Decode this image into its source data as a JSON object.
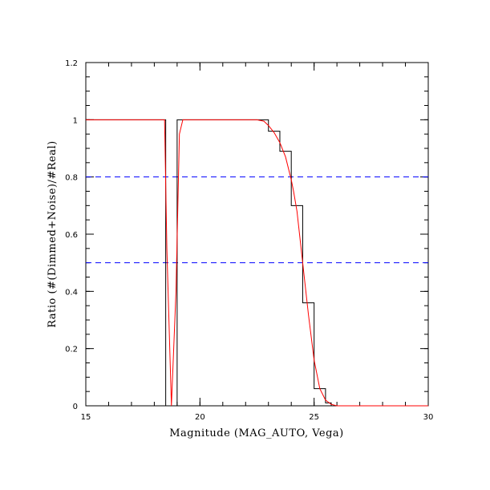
{
  "chart_data": {
    "type": "line",
    "title": "",
    "xlabel": "Magnitude (MAG_AUTO, Vega)",
    "ylabel": "Ratio (#(Dimmed+Noise)/#Real)",
    "xlim": [
      15,
      30
    ],
    "ylim": [
      0,
      1.2
    ],
    "x_ticks": [
      15,
      20,
      25,
      30
    ],
    "x_tick_labels": [
      "15",
      "20",
      "25",
      "30"
    ],
    "y_ticks": [
      0,
      0.2,
      0.4,
      0.6,
      0.8,
      1,
      1.2
    ],
    "y_tick_labels": [
      "0",
      "0.2",
      "0.4",
      "0.6",
      "0.8",
      "1",
      "1.2"
    ],
    "grid": false,
    "legend": "none",
    "series": [
      {
        "kind": "step-histogram",
        "color": "#000000",
        "points": [
          [
            15,
            1
          ],
          [
            18.5,
            1
          ],
          [
            18.5,
            0
          ],
          [
            18.75,
            0
          ],
          [
            18.75,
            0
          ],
          [
            19.0,
            0
          ],
          [
            19.0,
            1
          ],
          [
            23.0,
            1
          ],
          [
            23.0,
            0.96
          ],
          [
            23.5,
            0.96
          ],
          [
            23.5,
            0.89
          ],
          [
            24.0,
            0.89
          ],
          [
            24.0,
            0.7
          ],
          [
            24.5,
            0.7
          ],
          [
            24.5,
            0.36
          ],
          [
            25.0,
            0.36
          ],
          [
            25.0,
            0.06
          ],
          [
            25.5,
            0.06
          ],
          [
            25.5,
            0.01
          ],
          [
            25.75,
            0.01
          ],
          [
            25.75,
            0
          ],
          [
            30,
            0
          ]
        ]
      },
      {
        "kind": "fit-curve",
        "color": "#ff0000",
        "points": [
          [
            15,
            1
          ],
          [
            18.2,
            1
          ],
          [
            18.45,
            1
          ],
          [
            18.55,
            0.55
          ],
          [
            18.75,
            0
          ],
          [
            18.95,
            0.4
          ],
          [
            19.1,
            0.95
          ],
          [
            19.25,
            1
          ],
          [
            22.5,
            1
          ],
          [
            22.8,
            0.995
          ],
          [
            23.0,
            0.98
          ],
          [
            23.25,
            0.955
          ],
          [
            23.5,
            0.92
          ],
          [
            23.75,
            0.87
          ],
          [
            24.0,
            0.79
          ],
          [
            24.1,
            0.75
          ],
          [
            24.25,
            0.68
          ],
          [
            24.5,
            0.5
          ],
          [
            24.75,
            0.32
          ],
          [
            25.0,
            0.16
          ],
          [
            25.25,
            0.06
          ],
          [
            25.5,
            0.02
          ],
          [
            25.75,
            0.005
          ],
          [
            26.0,
            0
          ],
          [
            30,
            0
          ]
        ]
      }
    ],
    "reference_lines": [
      {
        "y": 0.8,
        "color": "#0000ff",
        "style": "dashed"
      },
      {
        "y": 0.5,
        "color": "#0000ff",
        "style": "dashed"
      }
    ]
  }
}
